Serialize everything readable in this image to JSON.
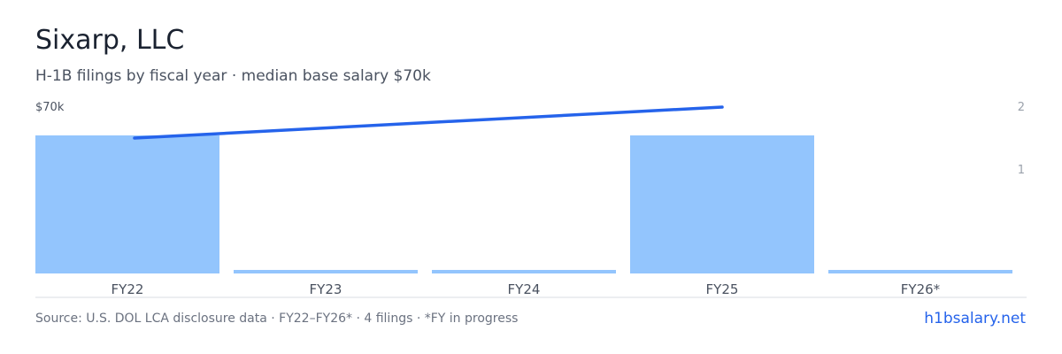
{
  "header": {
    "title": "Sixarp, LLC",
    "subtitle": "H-1B filings by fiscal year · median base salary $70k"
  },
  "footer": {
    "source": "Source: U.S. DOL LCA disclosure data · FY22–FY26* · 4 filings · *FY in progress",
    "link": "h1bsalary.net"
  },
  "colors": {
    "bar": "#93c5fd",
    "line": "#2563eb",
    "axis_label": "#9aa1ab",
    "tick_label": "#4a5260"
  },
  "chart_data": {
    "type": "bar",
    "categories": [
      "FY22",
      "FY23",
      "FY24",
      "FY25",
      "FY26*"
    ],
    "series": [
      {
        "values": [
          2,
          0,
          0,
          2,
          0
        ]
      },
      {
        "values": [
          70000,
          null,
          null,
          70000,
          null
        ]
      }
    ],
    "left_axis_label": "$70k",
    "right_axis_ticks": [
      "2",
      "1"
    ],
    "ylim_count": [
      0,
      2
    ]
  }
}
